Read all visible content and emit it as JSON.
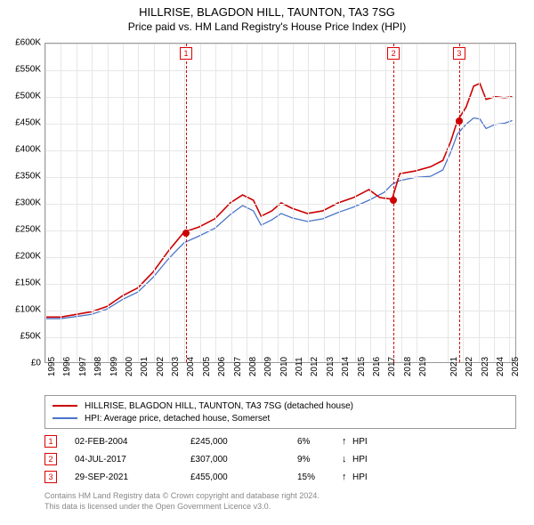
{
  "titles": {
    "main": "HILLRISE, BLAGDON HILL, TAUNTON, TA3 7SG",
    "sub": "Price paid vs. HM Land Registry's House Price Index (HPI)"
  },
  "chart": {
    "type": "line",
    "background_color": "#ffffff",
    "grid_color": "#e6e6e6",
    "axis_color": "#999999",
    "ylim": [
      0,
      600000
    ],
    "ytick_step": 50000,
    "ytick_labels": [
      "£0",
      "£50K",
      "£100K",
      "£150K",
      "£200K",
      "£250K",
      "£300K",
      "£350K",
      "£400K",
      "£450K",
      "£500K",
      "£550K",
      "£600K"
    ],
    "x_years": [
      1995,
      1996,
      1997,
      1998,
      1999,
      2000,
      2001,
      2002,
      2003,
      2004,
      2005,
      2006,
      2007,
      2008,
      2009,
      2010,
      2011,
      2012,
      2013,
      2014,
      2015,
      2016,
      2017,
      2018,
      2019,
      2021,
      2022,
      2023,
      2024,
      2025
    ],
    "x_range": [
      1995,
      2025.5
    ],
    "series": [
      {
        "name": "price_paid",
        "label": "HILLRISE, BLAGDON HILL, TAUNTON, TA3 7SG (detached house)",
        "color": "#cc0000",
        "line_width": 1.6,
        "points": [
          [
            1995,
            85000
          ],
          [
            1996,
            85000
          ],
          [
            1997,
            90000
          ],
          [
            1998,
            95000
          ],
          [
            1999,
            105000
          ],
          [
            2000,
            125000
          ],
          [
            2001,
            140000
          ],
          [
            2002,
            170000
          ],
          [
            2003,
            210000
          ],
          [
            2004,
            245000
          ],
          [
            2004.5,
            250000
          ],
          [
            2005,
            255000
          ],
          [
            2006,
            270000
          ],
          [
            2007,
            300000
          ],
          [
            2007.8,
            315000
          ],
          [
            2008.5,
            305000
          ],
          [
            2009,
            275000
          ],
          [
            2009.7,
            285000
          ],
          [
            2010.3,
            300000
          ],
          [
            2011,
            290000
          ],
          [
            2012,
            280000
          ],
          [
            2013,
            285000
          ],
          [
            2014,
            300000
          ],
          [
            2015,
            310000
          ],
          [
            2016,
            325000
          ],
          [
            2016.7,
            310000
          ],
          [
            2017.5,
            307000
          ],
          [
            2018,
            355000
          ],
          [
            2019,
            360000
          ],
          [
            2020,
            368000
          ],
          [
            2020.8,
            380000
          ],
          [
            2021.3,
            415000
          ],
          [
            2021.75,
            455000
          ],
          [
            2022.3,
            480000
          ],
          [
            2022.8,
            520000
          ],
          [
            2023.2,
            525000
          ],
          [
            2023.6,
            495000
          ],
          [
            2024.2,
            500000
          ],
          [
            2024.8,
            498000
          ],
          [
            2025.3,
            500000
          ]
        ]
      },
      {
        "name": "hpi",
        "label": "HPI: Average price, detached house, Somerset",
        "color": "#4a74c9",
        "line_width": 1.3,
        "points": [
          [
            1995,
            82000
          ],
          [
            1996,
            82000
          ],
          [
            1997,
            86000
          ],
          [
            1998,
            90000
          ],
          [
            1999,
            100000
          ],
          [
            2000,
            118000
          ],
          [
            2001,
            132000
          ],
          [
            2002,
            160000
          ],
          [
            2003,
            195000
          ],
          [
            2004,
            225000
          ],
          [
            2005,
            238000
          ],
          [
            2006,
            252000
          ],
          [
            2007,
            278000
          ],
          [
            2007.8,
            295000
          ],
          [
            2008.5,
            285000
          ],
          [
            2009,
            258000
          ],
          [
            2009.7,
            268000
          ],
          [
            2010.3,
            280000
          ],
          [
            2011,
            272000
          ],
          [
            2012,
            265000
          ],
          [
            2013,
            270000
          ],
          [
            2014,
            282000
          ],
          [
            2015,
            292000
          ],
          [
            2016,
            305000
          ],
          [
            2017,
            320000
          ],
          [
            2017.5,
            335000
          ],
          [
            2018,
            342000
          ],
          [
            2019,
            348000
          ],
          [
            2020,
            350000
          ],
          [
            2020.8,
            362000
          ],
          [
            2021.3,
            395000
          ],
          [
            2021.75,
            430000
          ],
          [
            2022.3,
            448000
          ],
          [
            2022.8,
            460000
          ],
          [
            2023.2,
            458000
          ],
          [
            2023.6,
            440000
          ],
          [
            2024.2,
            448000
          ],
          [
            2024.8,
            450000
          ],
          [
            2025.3,
            455000
          ]
        ]
      }
    ],
    "sales": [
      {
        "n": "1",
        "year": 2004.09,
        "price": 245000,
        "date": "02-FEB-2004",
        "price_label": "£245,000",
        "pct": "6%",
        "arrow": "↑",
        "hpi_label": "HPI"
      },
      {
        "n": "2",
        "year": 2017.51,
        "price": 307000,
        "date": "04-JUL-2017",
        "price_label": "£307,000",
        "pct": "9%",
        "arrow": "↓",
        "hpi_label": "HPI"
      },
      {
        "n": "3",
        "year": 2021.75,
        "price": 455000,
        "date": "29-SEP-2021",
        "price_label": "£455,000",
        "pct": "15%",
        "arrow": "↑",
        "hpi_label": "HPI"
      }
    ],
    "sale_marker_color": "#cc0000",
    "sale_line_color": "#cc0000",
    "tick_fontsize": 10
  },
  "footer": {
    "line1": "Contains HM Land Registry data © Crown copyright and database right 2024.",
    "line2": "This data is licensed under the Open Government Licence v3.0."
  }
}
